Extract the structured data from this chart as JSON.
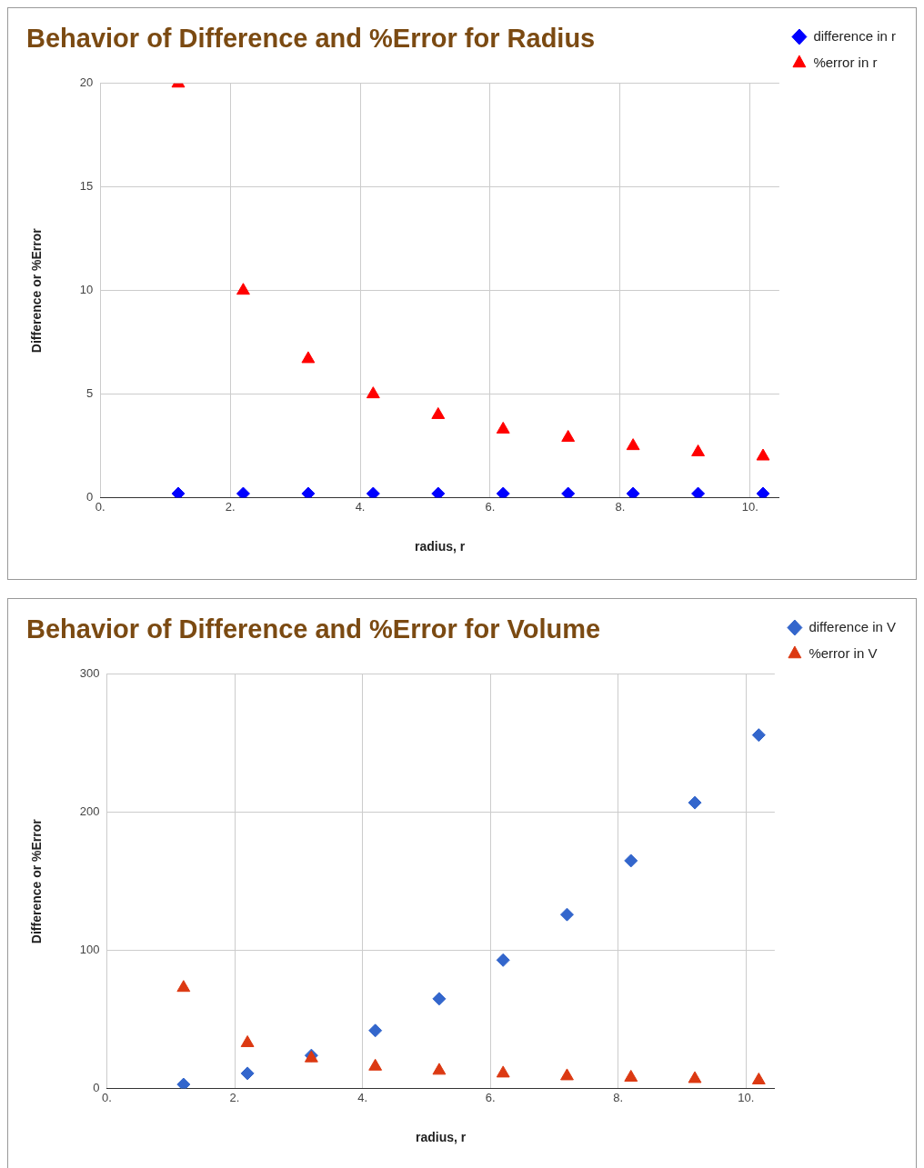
{
  "chart_data": [
    {
      "type": "scatter",
      "title": "Behavior of Difference and %Error for Radius",
      "xlabel": "radius, r",
      "ylabel": "Difference or %Error",
      "x": [
        1.2,
        2.2,
        3.2,
        4.2,
        5.2,
        6.2,
        7.2,
        8.2,
        9.2,
        10.2
      ],
      "xlim": [
        0,
        10.45
      ],
      "xticks": [
        {
          "value": 0,
          "label": "0."
        },
        {
          "value": 2,
          "label": "2."
        },
        {
          "value": 4,
          "label": "4."
        },
        {
          "value": 6,
          "label": "6."
        },
        {
          "value": 8,
          "label": "8."
        },
        {
          "value": 10,
          "label": "10."
        }
      ],
      "ylim": [
        0,
        20
      ],
      "yticks": [
        0,
        5,
        10,
        15,
        20
      ],
      "grid": true,
      "legend": "top right",
      "series": [
        {
          "name": "difference in r",
          "color": "#0000ff",
          "marker": "diamond",
          "values": [
            0.2,
            0.2,
            0.2,
            0.2,
            0.2,
            0.2,
            0.2,
            0.2,
            0.2,
            0.2
          ]
        },
        {
          "name": "%error in r",
          "color": "#ff0000",
          "marker": "triangle",
          "values": [
            20,
            10,
            6.7,
            5,
            4,
            3.3,
            2.9,
            2.5,
            2.2,
            2.0
          ]
        }
      ]
    },
    {
      "type": "scatter",
      "title": "Behavior of Difference and %Error for Volume",
      "xlabel": "radius, r",
      "ylabel": "Difference or %Error",
      "x": [
        1.2,
        2.2,
        3.2,
        4.2,
        5.2,
        6.2,
        7.2,
        8.2,
        9.2,
        10.2
      ],
      "xlim": [
        0,
        10.45
      ],
      "xticks": [
        {
          "value": 0,
          "label": "0."
        },
        {
          "value": 2,
          "label": "2."
        },
        {
          "value": 4,
          "label": "4."
        },
        {
          "value": 6,
          "label": "6."
        },
        {
          "value": 8,
          "label": "8."
        },
        {
          "value": 10,
          "label": "10."
        }
      ],
      "ylim": [
        0,
        300
      ],
      "yticks": [
        0,
        100,
        200,
        300
      ],
      "grid": true,
      "legend": "top right",
      "series": [
        {
          "name": "difference in V",
          "color": "#3366cc",
          "marker": "diamond",
          "values": [
            3,
            11,
            24,
            42,
            65,
            93,
            126,
            165,
            207,
            256
          ]
        },
        {
          "name": "%error in V",
          "color": "#dc3912",
          "marker": "triangle",
          "values": [
            73,
            33,
            22,
            16,
            13,
            11,
            9,
            8,
            7,
            6
          ]
        }
      ]
    }
  ]
}
